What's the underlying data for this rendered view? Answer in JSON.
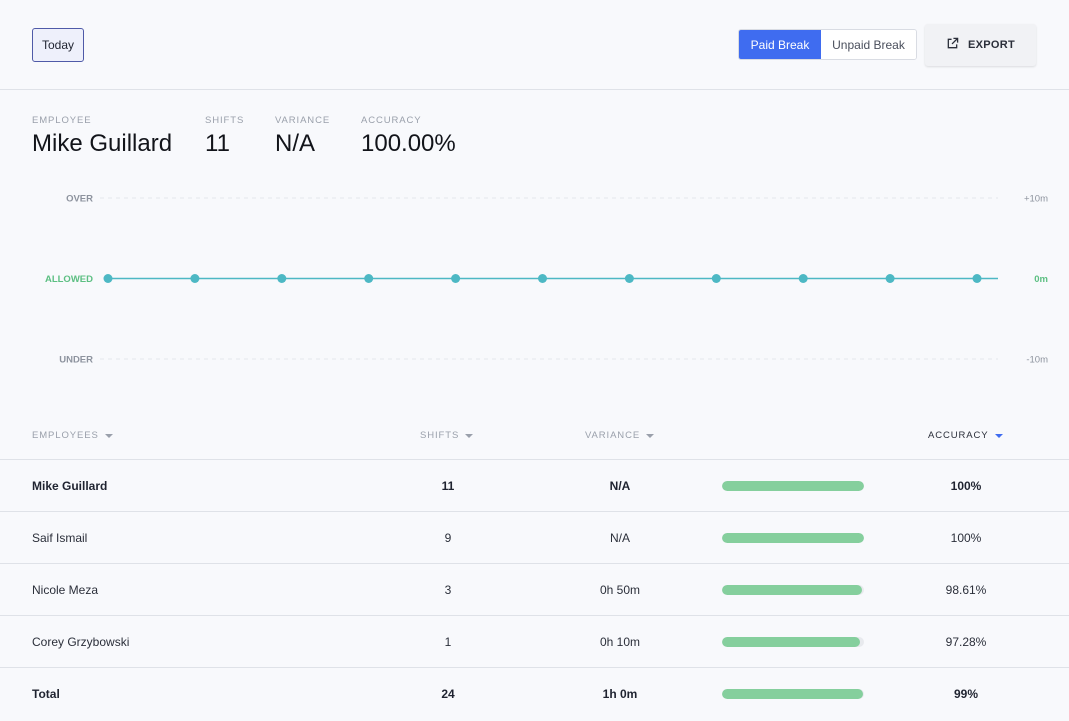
{
  "toolbar": {
    "today_label": "Today",
    "paid_break_label": "Paid Break",
    "unpaid_break_label": "Unpaid Break",
    "export_label": "EXPORT",
    "export_icon": "external-link-icon",
    "active_tab": "Paid Break",
    "accent_color": "#3f6cf0"
  },
  "summary": {
    "employee_label": "EMPLOYEE",
    "employee_value": "Mike Guillard",
    "shifts_label": "SHIFTS",
    "shifts_value": "11",
    "variance_label": "VARIANCE",
    "variance_value": "N/A",
    "accuracy_label": "ACCURACY",
    "accuracy_value": "100.00%"
  },
  "chart_data": {
    "type": "line",
    "y_band_labels": [
      "OVER",
      "ALLOWED",
      "UNDER"
    ],
    "y_right_ticks": [
      "+10m",
      "0m",
      "-10m"
    ],
    "ylim": [
      -10,
      10
    ],
    "x": [
      1,
      2,
      3,
      4,
      5,
      6,
      7,
      8,
      9,
      10,
      11
    ],
    "series": [
      {
        "values": [
          0,
          0,
          0,
          0,
          0,
          0,
          0,
          0,
          0,
          0,
          0
        ],
        "color": "#4db8c4"
      }
    ],
    "allowed_color": "#5cbf82",
    "grid": true
  },
  "table": {
    "headers": {
      "employees": "EMPLOYEES",
      "shifts": "SHIFTS",
      "variance": "VARIANCE",
      "accuracy": "ACCURACY"
    },
    "sorted_by": "ACCURACY",
    "rows": [
      {
        "name": "Mike Guillard",
        "shifts": "11",
        "variance": "N/A",
        "accuracy": "100%",
        "accuracy_fraction": 1.0
      },
      {
        "name": "Saif Ismail",
        "shifts": "9",
        "variance": "N/A",
        "accuracy": "100%",
        "accuracy_fraction": 1.0
      },
      {
        "name": "Nicole Meza",
        "shifts": "3",
        "variance": "0h 50m",
        "accuracy": "98.61%",
        "accuracy_fraction": 0.9861
      },
      {
        "name": "Corey Grzybowski",
        "shifts": "1",
        "variance": "0h 10m",
        "accuracy": "97.28%",
        "accuracy_fraction": 0.9728
      }
    ],
    "total": {
      "name": "Total",
      "shifts": "24",
      "variance": "1h 0m",
      "accuracy": "99%",
      "accuracy_fraction": 0.99
    },
    "bar_color": "#85cf9d"
  }
}
